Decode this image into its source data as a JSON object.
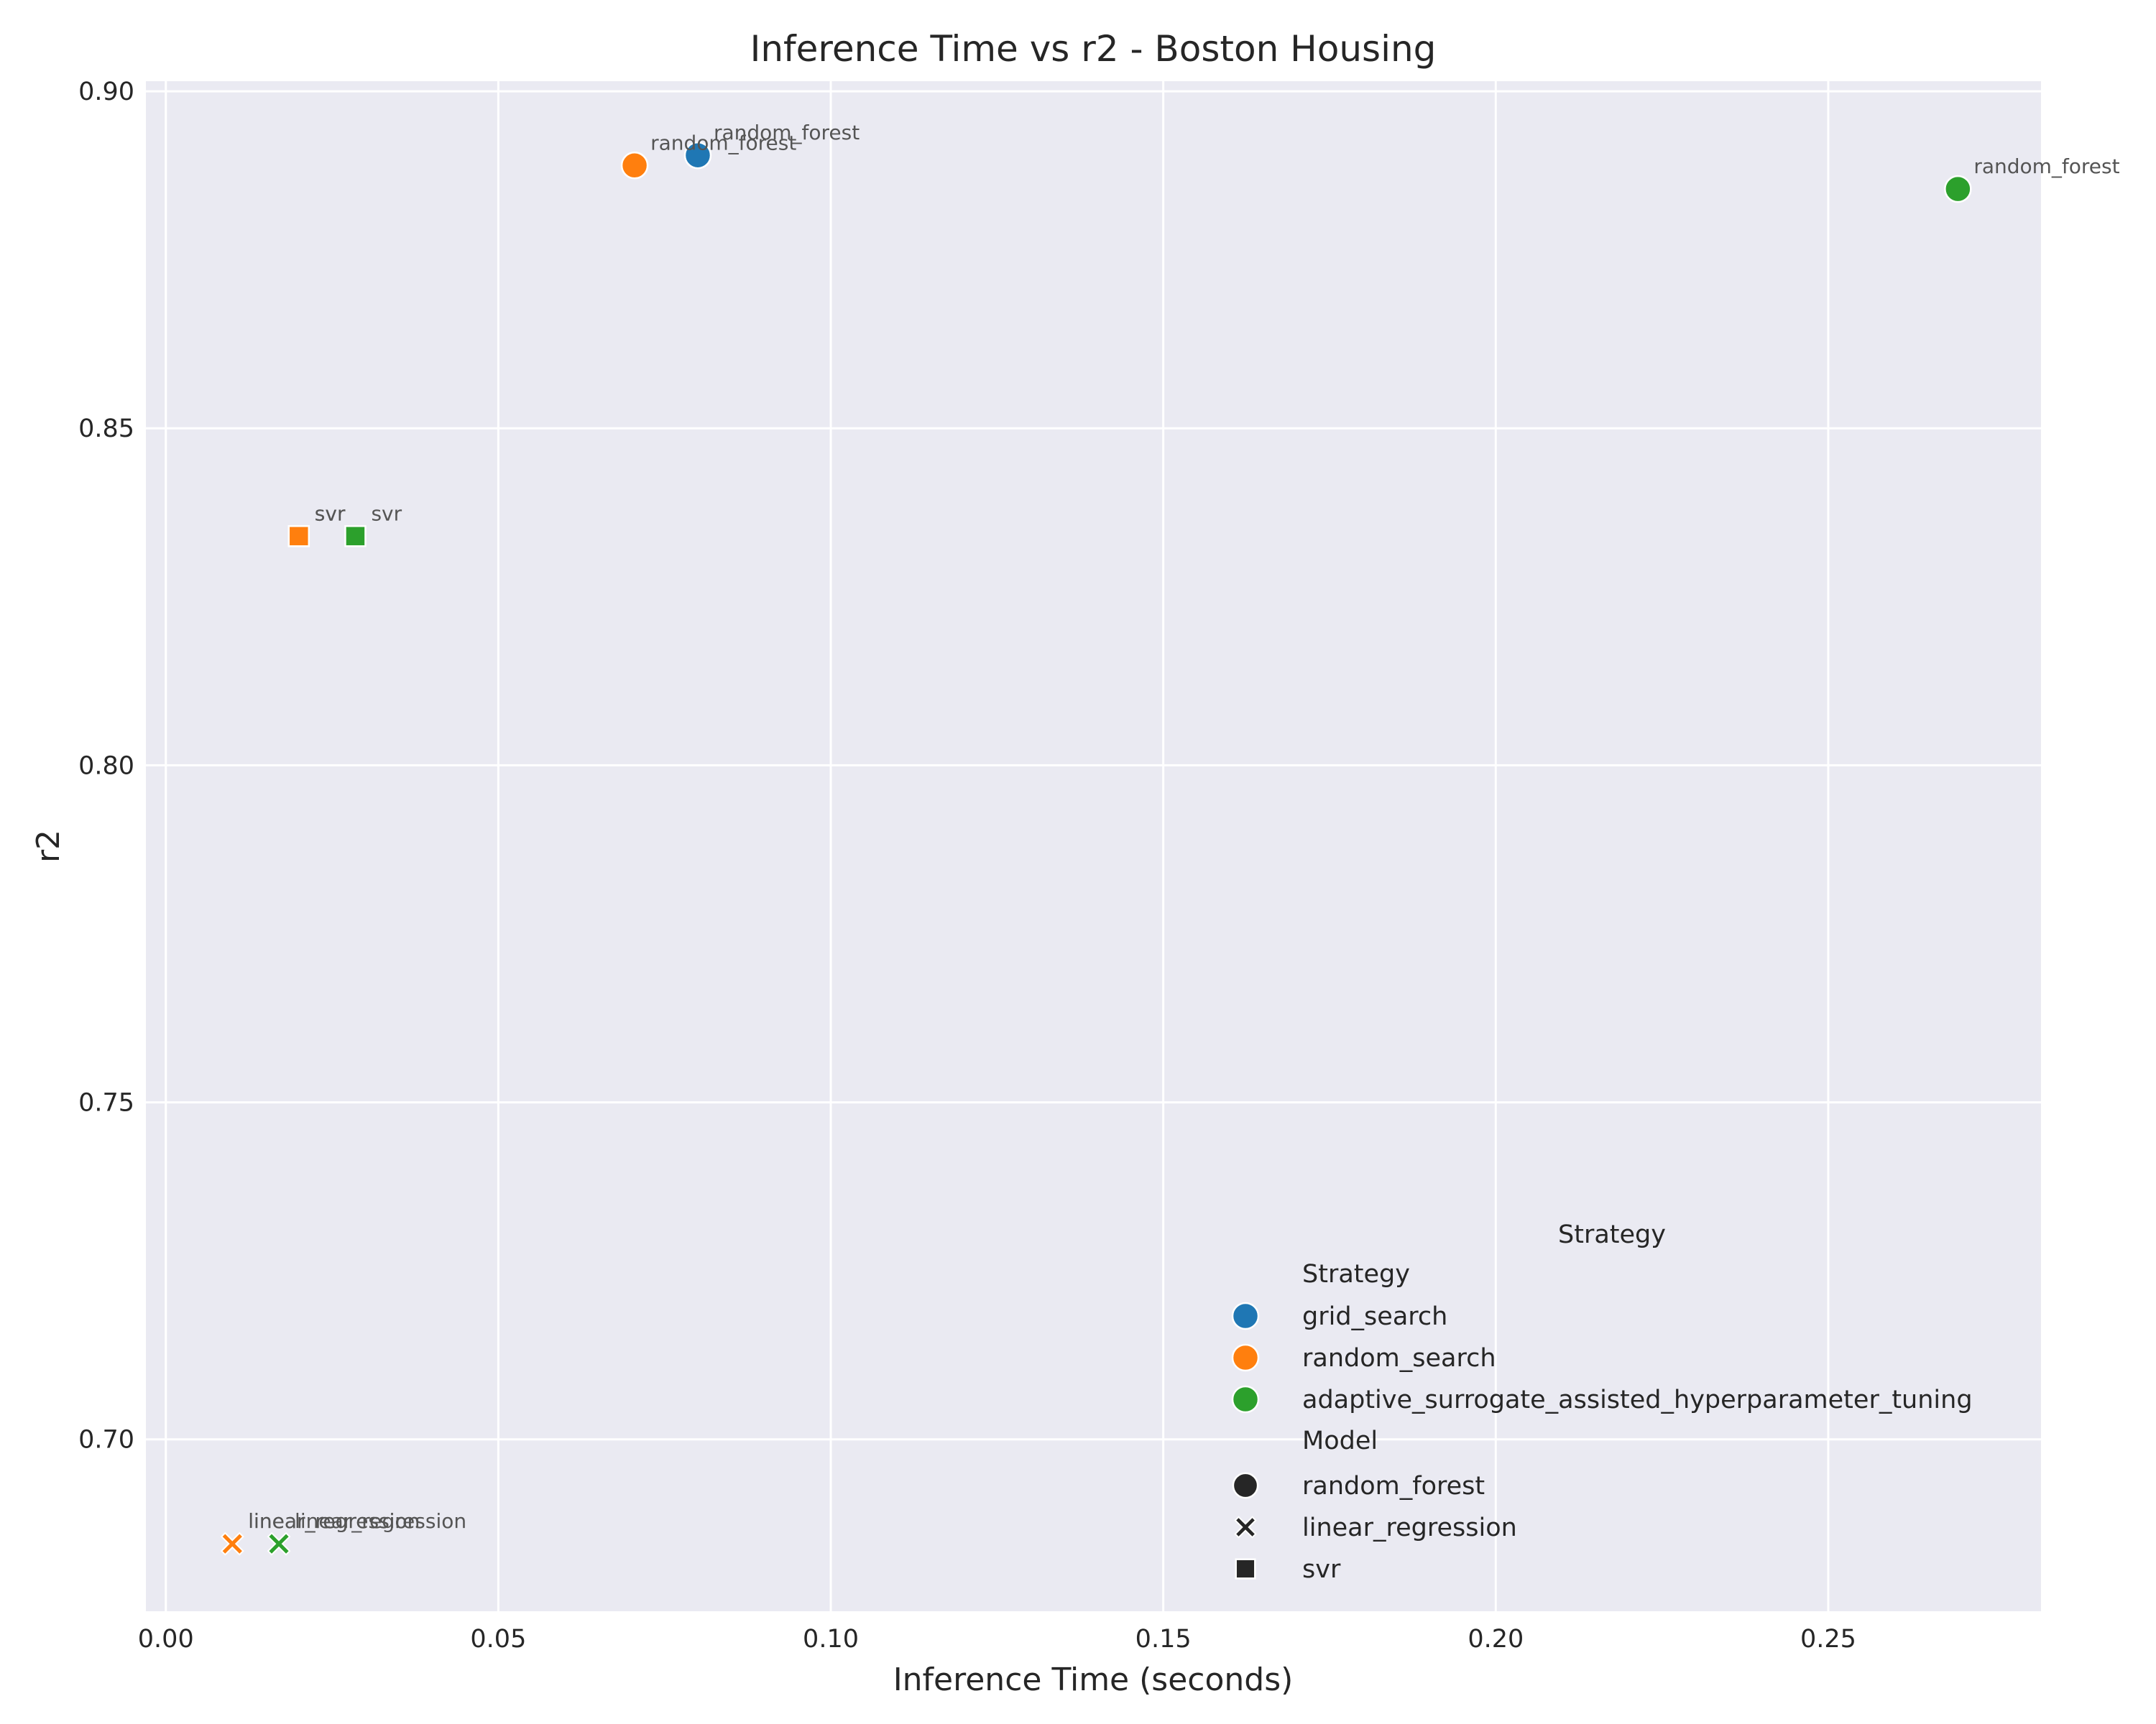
{
  "chart_data": {
    "type": "scatter",
    "title": "Inference Time vs r2 - Boston Housing",
    "xlabel": "Inference Time (seconds)",
    "ylabel": "r2",
    "xlim": [
      -0.003,
      0.282
    ],
    "ylim": [
      0.6745,
      0.9015
    ],
    "xticks": [
      "0.00",
      "0.05",
      "0.10",
      "0.15",
      "0.20",
      "0.25"
    ],
    "yticks": [
      "0.70",
      "0.75",
      "0.80",
      "0.85",
      "0.90"
    ],
    "grid": true,
    "strategy_colors": {
      "grid_search": "#1f77b4",
      "random_search": "#ff7f0e",
      "adaptive_surrogate_assisted_hyperparameter_tuning": "#2ca02c"
    },
    "model_markers": {
      "random_forest": "circle",
      "linear_regression": "x",
      "svr": "square"
    },
    "points": [
      {
        "strategy": "grid_search",
        "model": "random_forest",
        "x": 0.08,
        "y": 0.8905,
        "label": "random_forest"
      },
      {
        "strategy": "random_search",
        "model": "random_forest",
        "x": 0.0705,
        "y": 0.889,
        "label": "random_forest"
      },
      {
        "strategy": "adaptive_surrogate_assisted_hyperparameter_tuning",
        "model": "random_forest",
        "x": 0.2695,
        "y": 0.8855,
        "label": "random_forest"
      },
      {
        "strategy": "grid_search",
        "model": "svr",
        "x": 0.02,
        "y": 0.834,
        "label": "svr"
      },
      {
        "strategy": "random_search",
        "model": "svr",
        "x": 0.02,
        "y": 0.834,
        "label": "svr"
      },
      {
        "strategy": "adaptive_surrogate_assisted_hyperparameter_tuning",
        "model": "svr",
        "x": 0.0285,
        "y": 0.834,
        "label": "svr"
      },
      {
        "strategy": "grid_search",
        "model": "linear_regression",
        "x": 0.01,
        "y": 0.6845,
        "label": "linear_regression"
      },
      {
        "strategy": "random_search",
        "model": "linear_regression",
        "x": 0.01,
        "y": 0.6845,
        "label": "linear_regression"
      },
      {
        "strategy": "adaptive_surrogate_assisted_hyperparameter_tuning",
        "model": "linear_regression",
        "x": 0.017,
        "y": 0.6845,
        "label": "linear_regression"
      }
    ],
    "legend": {
      "placement": "lower-right",
      "outer_title": "Strategy",
      "strategy_title": "Strategy",
      "strategies": [
        "grid_search",
        "random_search",
        "adaptive_surrogate_assisted_hyperparameter_tuning"
      ],
      "model_title": "Model",
      "models": [
        "random_forest",
        "linear_regression",
        "svr"
      ]
    }
  }
}
